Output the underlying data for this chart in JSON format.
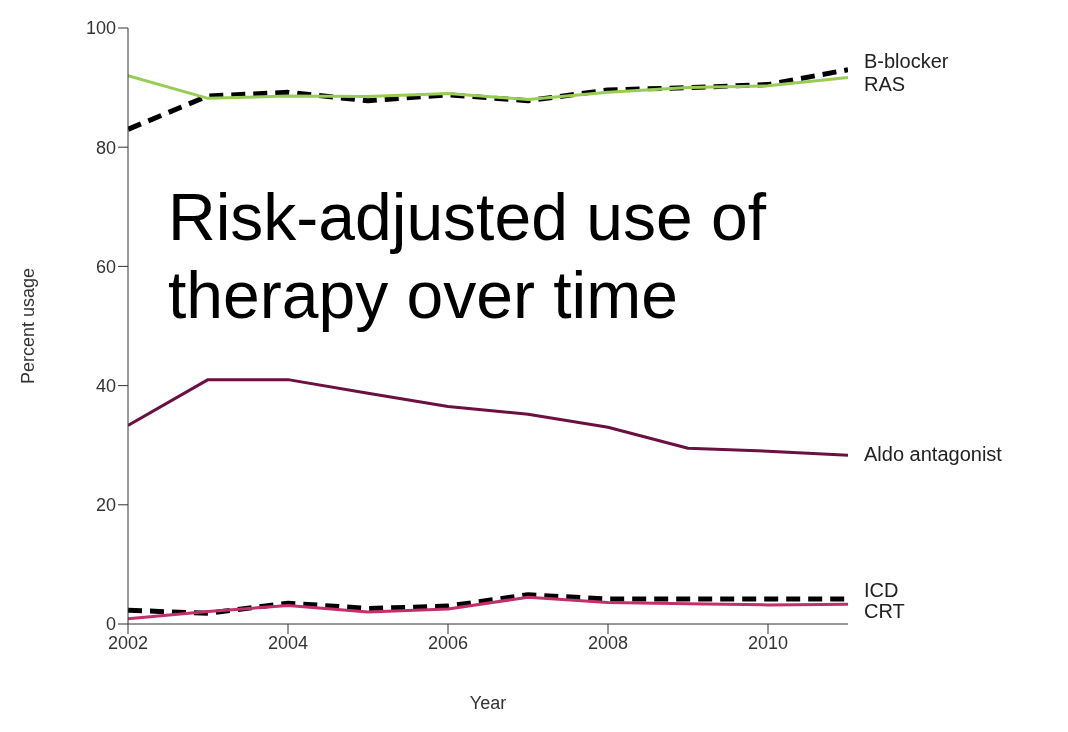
{
  "chart_data": {
    "type": "line",
    "title": "Risk-adjusted use of therapy over time",
    "xlabel": "Year",
    "ylabel": "Percent usage",
    "x": [
      2002,
      2003,
      2004,
      2005,
      2006,
      2007,
      2008,
      2009,
      2010,
      2011
    ],
    "xlim": [
      2002,
      2011
    ],
    "xticks": [
      2002,
      2004,
      2006,
      2008,
      2010
    ],
    "ylim": [
      0,
      100
    ],
    "yticks": [
      0,
      20,
      40,
      60,
      80,
      100
    ],
    "grid": false,
    "legend": false,
    "marker": "none",
    "series": [
      {
        "name": "B-blocker",
        "color": "#000000",
        "line_style": "dashed",
        "values": [
          83,
          88.6,
          89.2,
          87.8,
          88.8,
          87.8,
          89.6,
          90,
          90.5,
          93
        ]
      },
      {
        "name": "RAS",
        "color": "#99cc55",
        "line_style": "solid",
        "values": [
          92,
          88.2,
          88.6,
          88.5,
          89,
          88,
          89.2,
          90,
          90.3,
          91.7
        ]
      },
      {
        "name": "Aldo antagonist",
        "color": "#6b1040",
        "line_style": "solid",
        "values": [
          33.3,
          41,
          41,
          38.7,
          36.5,
          35.2,
          33,
          29.5,
          29,
          28.3
        ]
      },
      {
        "name": "ICD",
        "color": "#000000",
        "line_style": "dashed",
        "values": [
          2.3,
          1.8,
          3.5,
          2.6,
          3,
          4.9,
          4.2,
          4.2,
          4.2,
          4.2
        ]
      },
      {
        "name": "CRT",
        "color": "#c0306a",
        "line_style": "solid",
        "values": [
          0.9,
          2.1,
          3.1,
          2,
          2.5,
          4.5,
          3.6,
          3.4,
          3.2,
          3.3
        ]
      }
    ]
  }
}
